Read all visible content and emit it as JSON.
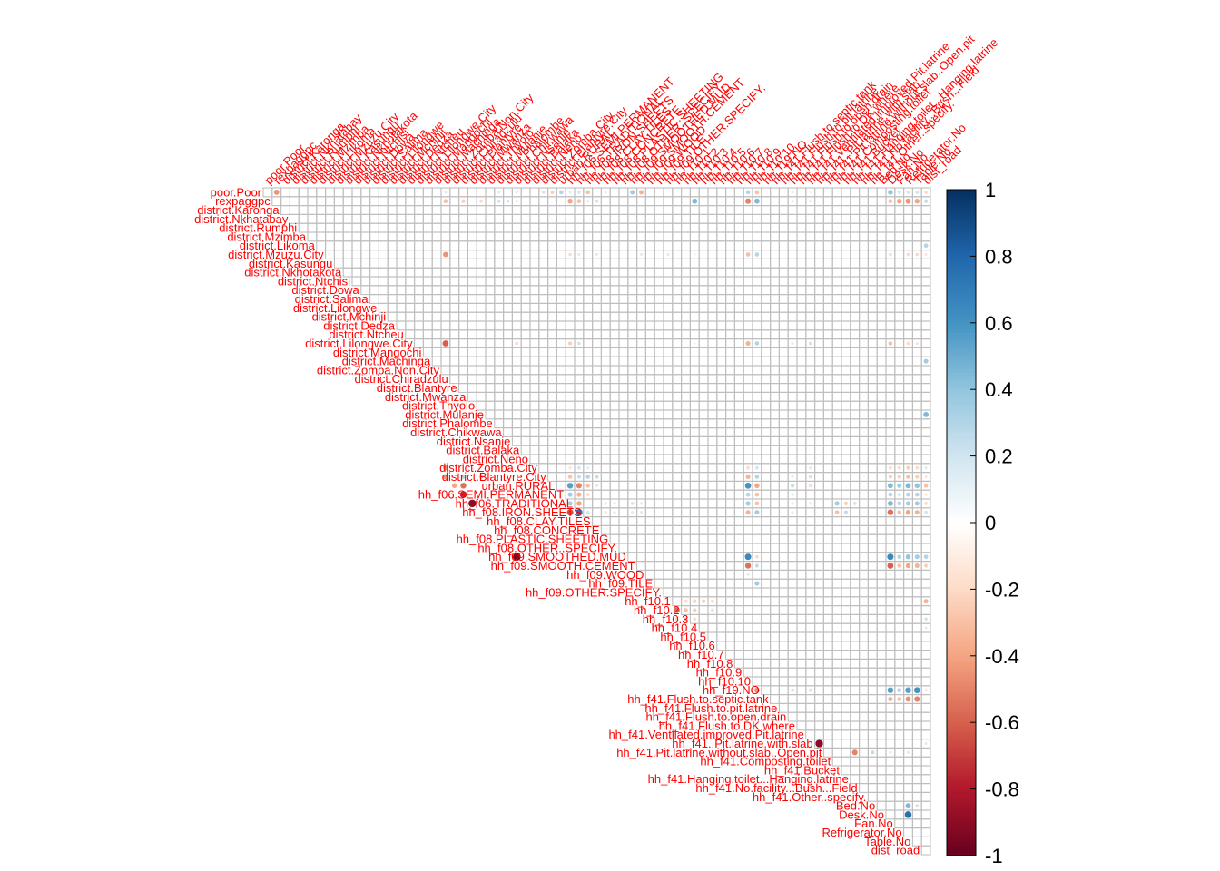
{
  "chart_data": {
    "type": "heatmap",
    "variables": [
      "poor.Poor",
      "rexpaggpc",
      "district.Karonga",
      "district.Nkhatabay",
      "district.Rumphi",
      "district.Mzimba",
      "district.Likoma",
      "district.Mzuzu.City",
      "district.Kasungu",
      "district.Nkhotakota",
      "district.Ntchisi",
      "district.Dowa",
      "district.Salima",
      "district.Lilongwe",
      "district.Mchinji",
      "district.Dedza",
      "district.Ntcheu",
      "district.Lilongwe.City",
      "district.Mangochi",
      "district.Machinga",
      "district.Zomba.Non.City",
      "district.Chiradzulu",
      "district.Blantyre",
      "district.Mwanza",
      "district.Thyolo",
      "district.Mulanje",
      "district.Phalombe",
      "district.Chikwawa",
      "district.Nsanje",
      "district.Balaka",
      "district.Neno",
      "district.Zomba.City",
      "district.Blantyre.City",
      "urban.RURAL",
      "hh_f06.SEMI.PERMANENT",
      "hh_f06.TRADITIONAL",
      "hh_f08.IRON.SHEETS",
      "hh_f08.CLAY.TILES",
      "hh_f08.CONCRETE",
      "hh_f08.PLASTIC.SHEETING",
      "hh_f08.OTHER..SPECIFY.",
      "hh_f09.SMOOTHED.MUD",
      "hh_f09.SMOOTH.CEMENT",
      "hh_f09.WOOD",
      "hh_f09.TILE",
      "hh_f09.OTHER.SPECIFY.",
      "hh_f10.1",
      "hh_f10.2",
      "hh_f10.3",
      "hh_f10.4",
      "hh_f10.5",
      "hh_f10.6",
      "hh_f10.7",
      "hh_f10.8",
      "hh_f10.9",
      "hh_f10.10",
      "hh_f19.NO",
      "hh_f41.Flush.to.septic.tank",
      "hh_f41.Flush.to.pit.latrine",
      "hh_f41.Flush.to.open.drain",
      "hh_f41.Flush.to.DK.where",
      "hh_f41.Ventilated.improved.Pit.latrine",
      "hh_f41..Pit.latrine.with.slab",
      "hh_f41.Pit.latrine.without.slab..Open.pit",
      "hh_f41.Composting.toilet",
      "hh_f41.Bucket",
      "hh_f41.Hanging.toilet...Hanging.latrine",
      "hh_f41.No.facility...Bush...Field",
      "hh_f41.Other..specify.",
      "Bed.No",
      "Desk.No",
      "Fan.No",
      "Refrigerator.No",
      "Table.No",
      "dist_road"
    ],
    "correlations": [
      [
        0,
        1,
        -0.45
      ],
      [
        0,
        20,
        0.15
      ],
      [
        0,
        26,
        0.15
      ],
      [
        0,
        28,
        0.15
      ],
      [
        0,
        31,
        0.2
      ],
      [
        0,
        32,
        -0.25
      ],
      [
        0,
        33,
        0.3
      ],
      [
        0,
        34,
        0.15
      ],
      [
        0,
        35,
        0.2
      ],
      [
        0,
        36,
        -0.3
      ],
      [
        0,
        38,
        0.15
      ],
      [
        0,
        41,
        0.35
      ],
      [
        0,
        42,
        -0.35
      ],
      [
        0,
        54,
        0.3
      ],
      [
        0,
        55,
        -0.3
      ],
      [
        0,
        59,
        0.15
      ],
      [
        0,
        61,
        0.1
      ],
      [
        0,
        70,
        0.4
      ],
      [
        0,
        71,
        0.2
      ],
      [
        0,
        72,
        0.2
      ],
      [
        0,
        73,
        0.2
      ],
      [
        0,
        74,
        -0.2
      ],
      [
        1,
        20,
        -0.3
      ],
      [
        1,
        22,
        -0.25
      ],
      [
        1,
        24,
        -0.2
      ],
      [
        1,
        26,
        0.2
      ],
      [
        1,
        27,
        0.2
      ],
      [
        1,
        28,
        0.15
      ],
      [
        1,
        34,
        -0.4
      ],
      [
        1,
        35,
        -0.3
      ],
      [
        1,
        36,
        0.15
      ],
      [
        1,
        37,
        0.2
      ],
      [
        1,
        48,
        0.45
      ],
      [
        1,
        54,
        -0.5
      ],
      [
        1,
        55,
        0.45
      ],
      [
        1,
        59,
        -0.15
      ],
      [
        1,
        61,
        -0.15
      ],
      [
        1,
        70,
        -0.3
      ],
      [
        1,
        71,
        -0.4
      ],
      [
        1,
        72,
        -0.45
      ],
      [
        1,
        73,
        -0.4
      ],
      [
        1,
        74,
        0.25
      ],
      [
        6,
        74,
        0.3
      ],
      [
        7,
        20,
        -0.45
      ],
      [
        7,
        34,
        -0.2
      ],
      [
        7,
        35,
        0.15
      ],
      [
        7,
        37,
        0.15
      ],
      [
        7,
        42,
        0.15
      ],
      [
        7,
        45,
        0.15
      ],
      [
        7,
        48,
        0.1
      ],
      [
        7,
        54,
        -0.3
      ],
      [
        7,
        55,
        0.3
      ],
      [
        7,
        70,
        -0.2
      ],
      [
        7,
        72,
        -0.2
      ],
      [
        7,
        73,
        -0.2
      ],
      [
        7,
        74,
        -0.15
      ],
      [
        17,
        20,
        -0.6
      ],
      [
        17,
        28,
        -0.2
      ],
      [
        17,
        34,
        -0.25
      ],
      [
        17,
        35,
        0.2
      ],
      [
        17,
        48,
        0.1
      ],
      [
        17,
        54,
        -0.35
      ],
      [
        17,
        55,
        0.3
      ],
      [
        17,
        59,
        -0.15
      ],
      [
        17,
        61,
        0.2
      ],
      [
        17,
        70,
        -0.3
      ],
      [
        17,
        72,
        -0.2
      ],
      [
        17,
        73,
        -0.15
      ],
      [
        19,
        74,
        0.35
      ],
      [
        25,
        74,
        0.45
      ],
      [
        31,
        20,
        -0.45
      ],
      [
        31,
        34,
        -0.15
      ],
      [
        31,
        35,
        0.2
      ],
      [
        31,
        36,
        0.15
      ],
      [
        31,
        54,
        -0.2
      ],
      [
        31,
        55,
        0.2
      ],
      [
        31,
        61,
        0.15
      ],
      [
        31,
        70,
        -0.2
      ],
      [
        31,
        71,
        -0.2
      ],
      [
        31,
        72,
        -0.25
      ],
      [
        31,
        73,
        -0.2
      ],
      [
        31,
        74,
        0.15
      ],
      [
        32,
        20,
        -0.45
      ],
      [
        32,
        22,
        0.3
      ],
      [
        32,
        24,
        0.3
      ],
      [
        32,
        34,
        -0.3
      ],
      [
        32,
        35,
        0.25
      ],
      [
        32,
        36,
        0.3
      ],
      [
        32,
        37,
        0.25
      ],
      [
        32,
        54,
        -0.35
      ],
      [
        32,
        55,
        0.3
      ],
      [
        32,
        59,
        -0.15
      ],
      [
        32,
        61,
        0.2
      ],
      [
        32,
        70,
        -0.25
      ],
      [
        32,
        71,
        -0.25
      ],
      [
        32,
        72,
        -0.3
      ],
      [
        32,
        73,
        -0.25
      ],
      [
        32,
        74,
        -0.15
      ],
      [
        33,
        21,
        -0.4
      ],
      [
        33,
        22,
        -0.55
      ],
      [
        33,
        34,
        0.55
      ],
      [
        33,
        35,
        -0.5
      ],
      [
        33,
        36,
        -0.3
      ],
      [
        33,
        37,
        0.15
      ],
      [
        33,
        54,
        0.6
      ],
      [
        33,
        55,
        -0.4
      ],
      [
        33,
        59,
        0.25
      ],
      [
        33,
        61,
        -0.2
      ],
      [
        33,
        70,
        0.45
      ],
      [
        33,
        71,
        0.35
      ],
      [
        33,
        72,
        0.45
      ],
      [
        33,
        73,
        0.4
      ],
      [
        33,
        74,
        -0.3
      ],
      [
        34,
        22,
        -0.75
      ],
      [
        34,
        34,
        0.35
      ],
      [
        34,
        35,
        -0.35
      ],
      [
        34,
        36,
        -0.2
      ],
      [
        34,
        54,
        0.3
      ],
      [
        34,
        55,
        -0.3
      ],
      [
        34,
        59,
        0.15
      ],
      [
        34,
        70,
        0.3
      ],
      [
        34,
        71,
        0.2
      ],
      [
        34,
        72,
        0.3
      ],
      [
        34,
        73,
        0.3
      ],
      [
        34,
        74,
        -0.15
      ],
      [
        35,
        23,
        -0.9
      ],
      [
        35,
        34,
        0.35
      ],
      [
        35,
        35,
        -0.4
      ],
      [
        35,
        38,
        0.15
      ],
      [
        35,
        39,
        0.15
      ],
      [
        35,
        41,
        -0.2
      ],
      [
        35,
        42,
        -0.15
      ],
      [
        35,
        54,
        0.35
      ],
      [
        35,
        55,
        -0.3
      ],
      [
        35,
        59,
        0.15
      ],
      [
        35,
        61,
        -0.15
      ],
      [
        35,
        64,
        0.35
      ],
      [
        35,
        65,
        -0.25
      ],
      [
        35,
        66,
        0.2
      ],
      [
        35,
        70,
        0.45
      ],
      [
        35,
        71,
        0.3
      ],
      [
        35,
        72,
        0.35
      ],
      [
        35,
        73,
        0.35
      ],
      [
        35,
        74,
        -0.2
      ],
      [
        36,
        34,
        -0.65
      ],
      [
        36,
        35,
        0.75
      ],
      [
        36,
        36,
        0.2
      ],
      [
        36,
        38,
        -0.15
      ],
      [
        36,
        39,
        -0.15
      ],
      [
        36,
        41,
        0.15
      ],
      [
        36,
        42,
        0.15
      ],
      [
        36,
        54,
        -0.35
      ],
      [
        36,
        55,
        0.35
      ],
      [
        36,
        59,
        -0.15
      ],
      [
        36,
        64,
        -0.3
      ],
      [
        36,
        65,
        0.25
      ],
      [
        36,
        70,
        -0.55
      ],
      [
        36,
        71,
        -0.3
      ],
      [
        36,
        72,
        -0.4
      ],
      [
        36,
        73,
        -0.35
      ],
      [
        36,
        74,
        0.2
      ],
      [
        41,
        28,
        -0.95
      ],
      [
        41,
        54,
        0.65
      ],
      [
        41,
        55,
        -0.2
      ],
      [
        41,
        70,
        0.65
      ],
      [
        41,
        71,
        0.3
      ],
      [
        41,
        72,
        0.4
      ],
      [
        41,
        73,
        0.35
      ],
      [
        41,
        74,
        0.3
      ],
      [
        42,
        54,
        -0.55
      ],
      [
        42,
        55,
        0.25
      ],
      [
        42,
        70,
        -0.6
      ],
      [
        42,
        71,
        -0.3
      ],
      [
        42,
        72,
        -0.4
      ],
      [
        42,
        73,
        -0.35
      ],
      [
        42,
        74,
        -0.25
      ],
      [
        43,
        54,
        0.15
      ],
      [
        43,
        70,
        0.1
      ],
      [
        43,
        72,
        0.1
      ],
      [
        44,
        55,
        0.35
      ],
      [
        46,
        47,
        -0.2
      ],
      [
        46,
        48,
        -0.25
      ],
      [
        46,
        49,
        -0.25
      ],
      [
        46,
        50,
        -0.2
      ],
      [
        46,
        74,
        -0.35
      ],
      [
        47,
        46,
        -0.55
      ],
      [
        47,
        47,
        -0.3
      ],
      [
        47,
        48,
        -0.25
      ],
      [
        47,
        50,
        -0.2
      ],
      [
        48,
        46,
        -0.2
      ],
      [
        48,
        47,
        -0.25
      ],
      [
        48,
        48,
        -0.2
      ],
      [
        48,
        74,
        0.2
      ],
      [
        49,
        74,
        -0.15
      ],
      [
        56,
        55,
        -0.45
      ],
      [
        56,
        59,
        0.2
      ],
      [
        56,
        61,
        0.2
      ],
      [
        56,
        70,
        0.55
      ],
      [
        56,
        71,
        0.3
      ],
      [
        56,
        72,
        0.55
      ],
      [
        56,
        73,
        0.6
      ],
      [
        56,
        74,
        -0.15
      ],
      [
        57,
        70,
        -0.35
      ],
      [
        57,
        71,
        -0.3
      ],
      [
        57,
        72,
        -0.45
      ],
      [
        57,
        73,
        -0.5
      ],
      [
        62,
        62,
        -0.9
      ],
      [
        62,
        74,
        0.15
      ],
      [
        63,
        66,
        -0.5
      ],
      [
        63,
        68,
        0.25
      ],
      [
        63,
        70,
        0.15
      ],
      [
        63,
        72,
        0.15
      ],
      [
        69,
        72,
        0.45
      ],
      [
        69,
        73,
        0.2
      ],
      [
        70,
        72,
        0.75
      ]
    ],
    "color_scale": {
      "min": -1,
      "max": 1,
      "ticks": [
        "1",
        "0.8",
        "0.6",
        "0.4",
        "0.2",
        "0",
        "-0.2",
        "-0.4",
        "-0.6",
        "-0.8",
        "-1"
      ],
      "colors": [
        "#67001F",
        "#B2182B",
        "#D6604D",
        "#F4A582",
        "#FDDBC7",
        "#FFFFFF",
        "#D1E5F0",
        "#92C5DE",
        "#4393C3",
        "#2166AC",
        "#053061"
      ]
    },
    "label_color": "#FF0000",
    "grid_color": "#BEBEBE"
  }
}
